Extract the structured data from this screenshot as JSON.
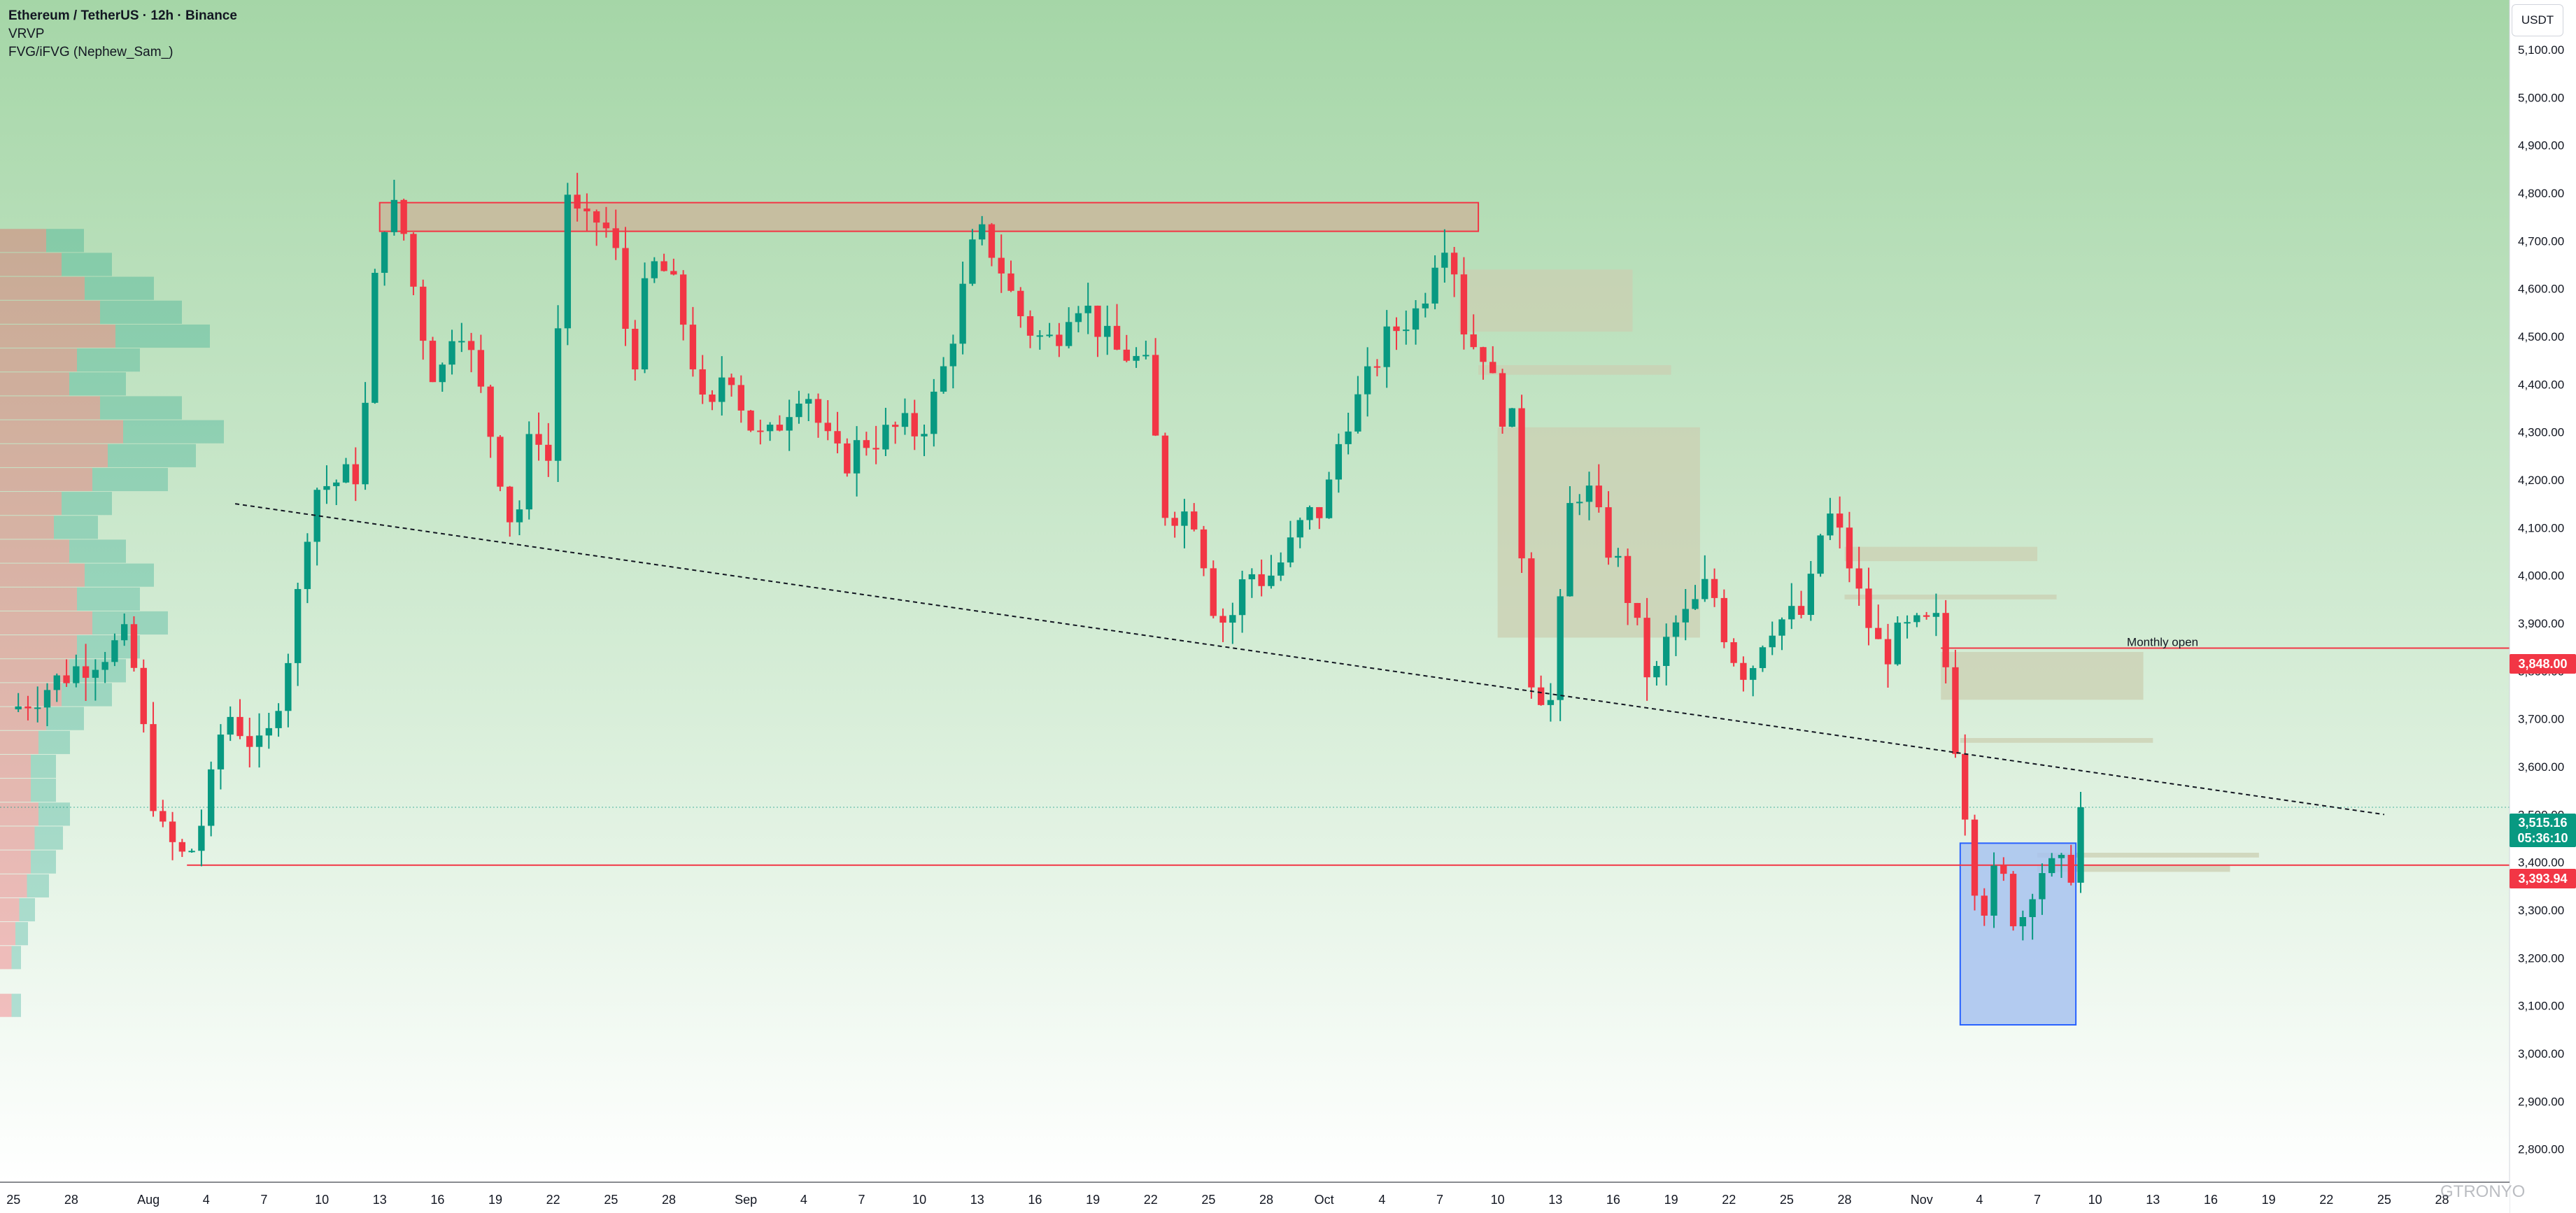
{
  "legend": {
    "symbol": "Ethereum / TetherUS · 12h · Binance",
    "indicator1": "VRVP",
    "indicator2": "FVG/iFVG (Nephew_Sam_)"
  },
  "currency": "USDT",
  "price_tags": {
    "monthly_open": "3,848.00",
    "last_price": "3,515.16",
    "countdown": "05:36:10",
    "support": "3,393.94"
  },
  "annotations": {
    "monthly_open_label": "Monthly open"
  },
  "watermark": "GTRONYO",
  "colors": {
    "up": "#089981",
    "down": "#f23645",
    "bg_top": "#a5d6a7",
    "bg_bottom": "#ffffff",
    "fvg_box": "#cbcfb2",
    "resistance_box": "#c9b99c",
    "blue_box": "#a8c3f0"
  },
  "chart_data": {
    "type": "candlestick",
    "symbol": "ETHUSDT",
    "timeframe": "12h",
    "ylim": [
      2760,
      5160
    ],
    "y_ticks": [
      "5,100.00",
      "5,000.00",
      "4,900.00",
      "4,800.00",
      "4,700.00",
      "4,600.00",
      "4,500.00",
      "4,400.00",
      "4,300.00",
      "4,200.00",
      "4,100.00",
      "4,000.00",
      "3,900.00",
      "3,800.00",
      "3,700.00",
      "3,600.00",
      "3,500.00",
      "3,400.00",
      "3,300.00",
      "3,200.00",
      "3,100.00",
      "3,000.00",
      "2,900.00",
      "2,800.00"
    ],
    "x_ticks": [
      {
        "label": "25",
        "day": 0
      },
      {
        "label": "28",
        "day": 3
      },
      {
        "label": "Aug",
        "day": 7
      },
      {
        "label": "4",
        "day": 10
      },
      {
        "label": "7",
        "day": 13
      },
      {
        "label": "10",
        "day": 16
      },
      {
        "label": "13",
        "day": 19
      },
      {
        "label": "16",
        "day": 22
      },
      {
        "label": "19",
        "day": 25
      },
      {
        "label": "22",
        "day": 28
      },
      {
        "label": "25",
        "day": 31
      },
      {
        "label": "28",
        "day": 34
      },
      {
        "label": "Sep",
        "day": 38
      },
      {
        "label": "4",
        "day": 41
      },
      {
        "label": "7",
        "day": 44
      },
      {
        "label": "10",
        "day": 47
      },
      {
        "label": "13",
        "day": 50
      },
      {
        "label": "16",
        "day": 53
      },
      {
        "label": "19",
        "day": 56
      },
      {
        "label": "22",
        "day": 59
      },
      {
        "label": "25",
        "day": 62
      },
      {
        "label": "28",
        "day": 65
      },
      {
        "label": "Oct",
        "day": 68
      },
      {
        "label": "4",
        "day": 71
      },
      {
        "label": "7",
        "day": 74
      },
      {
        "label": "10",
        "day": 77
      },
      {
        "label": "13",
        "day": 80
      },
      {
        "label": "16",
        "day": 83
      },
      {
        "label": "19",
        "day": 86
      },
      {
        "label": "22",
        "day": 89
      },
      {
        "label": "25",
        "day": 92
      },
      {
        "label": "28",
        "day": 95
      },
      {
        "label": "Nov",
        "day": 99
      },
      {
        "label": "4",
        "day": 102
      },
      {
        "label": "7",
        "day": 105
      },
      {
        "label": "10",
        "day": 108
      },
      {
        "label": "13",
        "day": 111
      },
      {
        "label": "16",
        "day": 114
      },
      {
        "label": "19",
        "day": 117
      },
      {
        "label": "22",
        "day": 120
      },
      {
        "label": "25",
        "day": 123
      },
      {
        "label": "28",
        "day": 126
      }
    ],
    "x_domain_days": [
      -0.7,
      129.5
    ],
    "key_points": [
      [
        0,
        3720
      ],
      [
        3,
        3800
      ],
      [
        6,
        3870
      ],
      [
        7.5,
        3470
      ],
      [
        9,
        3400
      ],
      [
        10,
        3510
      ],
      [
        11,
        3720
      ],
      [
        13,
        3620
      ],
      [
        14.5,
        3880
      ],
      [
        15.5,
        4180
      ],
      [
        17,
        4200
      ],
      [
        18,
        4220
      ],
      [
        19,
        4740
      ],
      [
        20,
        4770
      ],
      [
        21,
        4550
      ],
      [
        22,
        4390
      ],
      [
        23,
        4560
      ],
      [
        24,
        4420
      ],
      [
        25,
        4260
      ],
      [
        26,
        4080
      ],
      [
        27,
        4330
      ],
      [
        28,
        4210
      ],
      [
        28.5,
        4830
      ],
      [
        29.5,
        4720
      ],
      [
        30.5,
        4750
      ],
      [
        31.5,
        4640
      ],
      [
        32,
        4400
      ],
      [
        33,
        4650
      ],
      [
        34,
        4630
      ],
      [
        35,
        4500
      ],
      [
        36,
        4300
      ],
      [
        37,
        4460
      ],
      [
        38,
        4330
      ],
      [
        39,
        4270
      ],
      [
        40,
        4340
      ],
      [
        41,
        4410
      ],
      [
        42,
        4290
      ],
      [
        43,
        4230
      ],
      [
        44,
        4280
      ],
      [
        45,
        4290
      ],
      [
        46,
        4310
      ],
      [
        47,
        4300
      ],
      [
        48,
        4390
      ],
      [
        49,
        4550
      ],
      [
        50,
        4720
      ],
      [
        51,
        4670
      ],
      [
        52,
        4560
      ],
      [
        53,
        4500
      ],
      [
        54,
        4490
      ],
      [
        55,
        4590
      ],
      [
        56,
        4540
      ],
      [
        57,
        4470
      ],
      [
        58,
        4460
      ],
      [
        59,
        4420
      ],
      [
        59.5,
        4140
      ],
      [
        61,
        4130
      ],
      [
        61.5,
        4120
      ],
      [
        62,
        3960
      ],
      [
        63,
        3890
      ],
      [
        64,
        4010
      ],
      [
        65,
        3990
      ],
      [
        66,
        4040
      ],
      [
        67,
        4120
      ],
      [
        68,
        4140
      ],
      [
        69,
        4320
      ],
      [
        70,
        4380
      ],
      [
        71,
        4480
      ],
      [
        72,
        4530
      ],
      [
        73,
        4560
      ],
      [
        74,
        4710
      ],
      [
        74.5,
        4710
      ],
      [
        75.5,
        4460
      ],
      [
        76,
        4510
      ],
      [
        77,
        4360
      ],
      [
        78,
        4300
      ],
      [
        78.5,
        3810
      ],
      [
        79.5,
        3740
      ],
      [
        80,
        3730
      ],
      [
        80.5,
        4120
      ],
      [
        81.5,
        4200
      ],
      [
        82.5,
        4080
      ],
      [
        83.5,
        4000
      ],
      [
        84,
        3920
      ],
      [
        85,
        3760
      ],
      [
        86,
        3890
      ],
      [
        87,
        3920
      ],
      [
        88,
        3990
      ],
      [
        89,
        3850
      ],
      [
        90,
        3790
      ],
      [
        91,
        3900
      ],
      [
        92,
        3910
      ],
      [
        93,
        3920
      ],
      [
        94,
        4140
      ],
      [
        95,
        4060
      ],
      [
        96,
        3920
      ],
      [
        97,
        3830
      ],
      [
        98,
        3880
      ],
      [
        99,
        3890
      ],
      [
        100,
        3900
      ],
      [
        100.5,
        3720
      ],
      [
        101,
        3590
      ],
      [
        102,
        3290
      ],
      [
        103,
        3390
      ],
      [
        104,
        3260
      ],
      [
        105,
        3390
      ],
      [
        106,
        3380
      ],
      [
        107,
        3390
      ],
      [
        107.7,
        3515
      ]
    ],
    "last_candle_day": 107.7,
    "current_price": 3515.16,
    "countdown": "05:36:10",
    "support_level": 3393.94,
    "monthly_open": 3848.0,
    "trendline": {
      "from": [
        11.5,
        4150
      ],
      "to": [
        123,
        3500
      ]
    },
    "resistance_zone": {
      "x0_day": 19,
      "x1_day": 76,
      "y0": 4720,
      "y1": 4780
    },
    "fvg_boxes": [
      {
        "x0_day": 75,
        "x1_day": 84,
        "y0": 4510,
        "y1": 4640
      },
      {
        "x0_day": 76,
        "x1_day": 86,
        "y0": 4420,
        "y1": 4440
      },
      {
        "x0_day": 77,
        "x1_day": 87.5,
        "y0": 3870,
        "y1": 4310
      },
      {
        "x0_day": 95,
        "x1_day": 105,
        "y0": 4030,
        "y1": 4060
      },
      {
        "x0_day": 95,
        "x1_day": 106,
        "y0": 3950,
        "y1": 3960
      },
      {
        "x0_day": 100,
        "x1_day": 110.5,
        "y0": 3740,
        "y1": 3840
      },
      {
        "x0_day": 101,
        "x1_day": 111,
        "y0": 3650,
        "y1": 3660
      },
      {
        "x0_day": 105,
        "x1_day": 116.5,
        "y0": 3410,
        "y1": 3420
      },
      {
        "x0_day": 105,
        "x1_day": 115,
        "y0": 3380,
        "y1": 3395
      }
    ],
    "blue_zone": {
      "x0_day": 101,
      "x1_day": 107,
      "y0": 3060,
      "y1": 3440
    },
    "volume_profile": {
      "bins": [
        {
          "price": 4700,
          "size": 12
        },
        {
          "price": 4650,
          "size": 16
        },
        {
          "price": 4600,
          "size": 22
        },
        {
          "price": 4550,
          "size": 26
        },
        {
          "price": 4500,
          "size": 30
        },
        {
          "price": 4450,
          "size": 20
        },
        {
          "price": 4400,
          "size": 18
        },
        {
          "price": 4350,
          "size": 26
        },
        {
          "price": 4300,
          "size": 32
        },
        {
          "price": 4250,
          "size": 28
        },
        {
          "price": 4200,
          "size": 24
        },
        {
          "price": 4150,
          "size": 16
        },
        {
          "price": 4100,
          "size": 14
        },
        {
          "price": 4050,
          "size": 18
        },
        {
          "price": 4000,
          "size": 22
        },
        {
          "price": 3950,
          "size": 20
        },
        {
          "price": 3900,
          "size": 24
        },
        {
          "price": 3850,
          "size": 20
        },
        {
          "price": 3800,
          "size": 18
        },
        {
          "price": 3750,
          "size": 16
        },
        {
          "price": 3700,
          "size": 12
        },
        {
          "price": 3650,
          "size": 10
        },
        {
          "price": 3600,
          "size": 8
        },
        {
          "price": 3550,
          "size": 8
        },
        {
          "price": 3500,
          "size": 10
        },
        {
          "price": 3450,
          "size": 9
        },
        {
          "price": 3400,
          "size": 8
        },
        {
          "price": 3350,
          "size": 7
        },
        {
          "price": 3300,
          "size": 5
        },
        {
          "price": 3250,
          "size": 4
        },
        {
          "price": 3200,
          "size": 3
        },
        {
          "price": 3100,
          "size": 3
        }
      ]
    }
  }
}
